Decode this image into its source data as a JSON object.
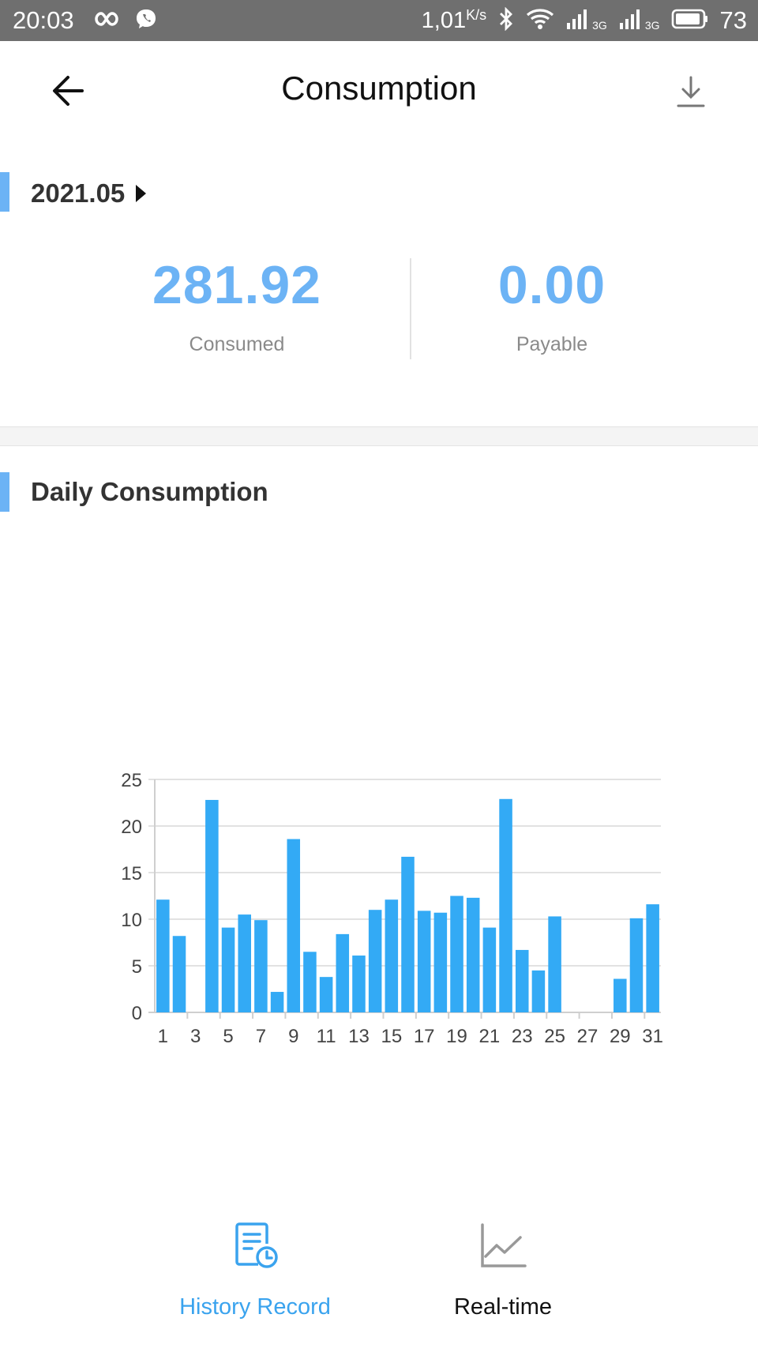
{
  "status_bar": {
    "time": "20:03",
    "speed": "1,01",
    "speed_unit": "K/s",
    "net1": "3G",
    "net2": "3G",
    "battery": "73"
  },
  "header": {
    "title": "Consumption",
    "back_icon": "arrow-left-icon",
    "download_icon": "download-icon"
  },
  "month": {
    "label": "2021.05"
  },
  "stats": {
    "consumed": {
      "value": "281.92",
      "label": "Consumed"
    },
    "payable": {
      "value": "0.00",
      "label": "Payable"
    }
  },
  "daily": {
    "title": "Daily Consumption"
  },
  "colors": {
    "accent": "#6cb3f5",
    "bar": "#33aaf5",
    "status_bar": "#6f6f6f"
  },
  "chart_data": {
    "type": "bar",
    "categories": [
      1,
      2,
      3,
      4,
      5,
      6,
      7,
      8,
      9,
      10,
      11,
      12,
      13,
      14,
      15,
      16,
      17,
      18,
      19,
      20,
      21,
      22,
      23,
      24,
      25,
      26,
      27,
      28,
      29,
      30,
      31
    ],
    "tick_labels": [
      "1",
      "3",
      "5",
      "7",
      "9",
      "11",
      "13",
      "15",
      "17",
      "19",
      "21",
      "23",
      "25",
      "27",
      "29",
      "31"
    ],
    "values": [
      12.1,
      8.2,
      0,
      22.8,
      9.1,
      10.5,
      9.9,
      2.2,
      18.6,
      6.5,
      3.8,
      8.4,
      6.1,
      11.0,
      12.1,
      16.7,
      10.9,
      10.7,
      12.5,
      12.3,
      9.1,
      22.9,
      6.7,
      4.5,
      10.3,
      0,
      0,
      0,
      3.6,
      10.1,
      11.6
    ],
    "yticks": [
      0,
      5,
      10,
      15,
      20,
      25
    ],
    "ylim": [
      0,
      25
    ],
    "grid": true
  },
  "nav": {
    "history": {
      "label": "History Record",
      "icon": "history-record-icon",
      "color": "#3aa3ee"
    },
    "realtime": {
      "label": "Real-time",
      "icon": "line-chart-icon",
      "color": "#111111"
    }
  }
}
